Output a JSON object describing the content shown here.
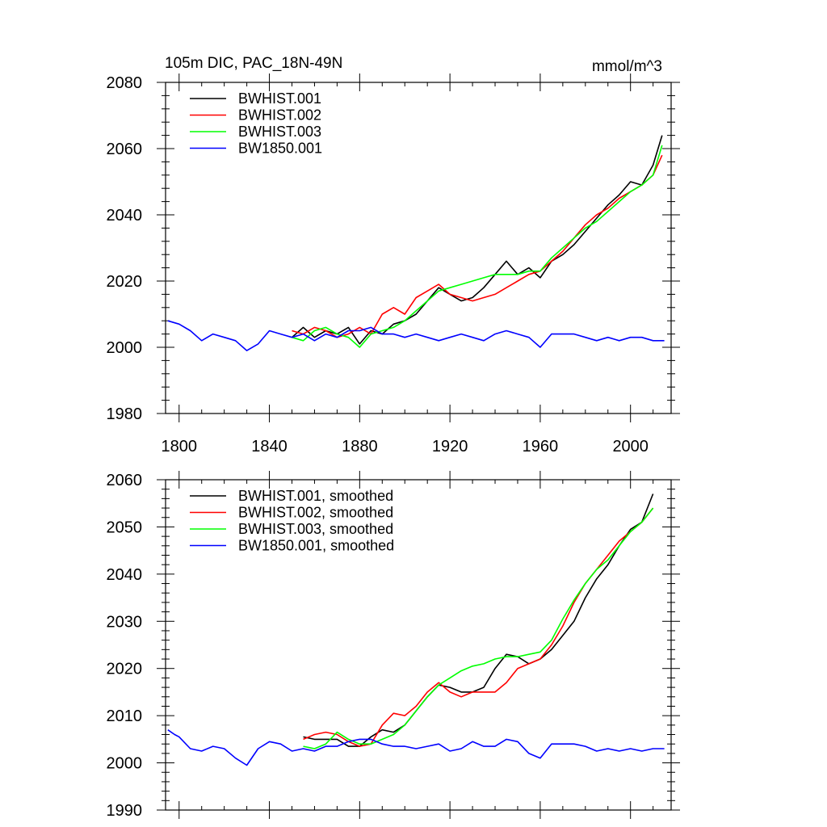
{
  "chart_data": [
    {
      "type": "line",
      "title": "105m DIC, PAC_18N-49N",
      "units": "mmol/m^3",
      "xlabel": "",
      "ylabel": "",
      "xlim": [
        1794,
        2018
      ],
      "ylim": [
        1980,
        2080
      ],
      "xticks": [
        1800,
        1840,
        1880,
        1920,
        1960,
        2000
      ],
      "xtick_labels": [
        "1800",
        "1840",
        "1880",
        "1920",
        "1960",
        "2000"
      ],
      "yticks": [
        1980,
        2000,
        2020,
        2040,
        2060,
        2080
      ],
      "ytick_labels": [
        "1980",
        "2000",
        "2020",
        "2040",
        "2060",
        "2080"
      ],
      "legend_position": "top-left",
      "grid": false,
      "series": [
        {
          "name": "BWHIST.001",
          "color": "#000000",
          "x": [
            1850,
            1855,
            1860,
            1865,
            1870,
            1875,
            1880,
            1885,
            1890,
            1895,
            1900,
            1905,
            1910,
            1915,
            1920,
            1925,
            1930,
            1935,
            1940,
            1945,
            1950,
            1955,
            1960,
            1965,
            1970,
            1975,
            1980,
            1985,
            1990,
            1995,
            2000,
            2005,
            2010,
            2014
          ],
          "y": [
            2003,
            2006,
            2003,
            2005,
            2004,
            2006,
            2001,
            2005,
            2004,
            2007,
            2008,
            2010,
            2014,
            2018,
            2016,
            2014,
            2015,
            2018,
            2022,
            2026,
            2022,
            2024,
            2021,
            2026,
            2028,
            2031,
            2035,
            2039,
            2043,
            2046,
            2050,
            2049,
            2055,
            2064
          ]
        },
        {
          "name": "BWHIST.002",
          "color": "#ff0000",
          "x": [
            1850,
            1855,
            1860,
            1865,
            1870,
            1875,
            1880,
            1885,
            1890,
            1895,
            1900,
            1905,
            1910,
            1915,
            1920,
            1925,
            1930,
            1935,
            1940,
            1945,
            1950,
            1955,
            1960,
            1965,
            1970,
            1975,
            1980,
            1985,
            1990,
            1995,
            2000,
            2005,
            2010,
            2014
          ],
          "y": [
            2005,
            2004,
            2006,
            2005,
            2003,
            2004,
            2006,
            2004,
            2010,
            2012,
            2010,
            2015,
            2017,
            2019,
            2016,
            2015,
            2014,
            2015,
            2016,
            2018,
            2020,
            2022,
            2023,
            2026,
            2029,
            2033,
            2037,
            2040,
            2042,
            2045,
            2047,
            2049,
            2052,
            2058
          ]
        },
        {
          "name": "BWHIST.003",
          "color": "#00ff00",
          "x": [
            1850,
            1855,
            1860,
            1865,
            1870,
            1875,
            1880,
            1885,
            1890,
            1895,
            1900,
            1905,
            1910,
            1915,
            1920,
            1925,
            1930,
            1935,
            1940,
            1945,
            1950,
            1955,
            1960,
            1965,
            1970,
            1975,
            1980,
            1985,
            1990,
            1995,
            2000,
            2005,
            2010,
            2014
          ],
          "y": [
            2003,
            2002,
            2005,
            2006,
            2004,
            2003,
            2000,
            2004,
            2005,
            2006,
            2008,
            2011,
            2014,
            2017,
            2018,
            2019,
            2020,
            2021,
            2022,
            2022,
            2022,
            2023,
            2023,
            2027,
            2030,
            2033,
            2036,
            2038,
            2041,
            2044,
            2047,
            2049,
            2052,
            2061
          ]
        },
        {
          "name": "BW1850.001",
          "color": "#0000ff",
          "x": [
            1795,
            1800,
            1805,
            1810,
            1815,
            1820,
            1825,
            1830,
            1835,
            1840,
            1845,
            1850,
            1855,
            1860,
            1865,
            1870,
            1875,
            1880,
            1885,
            1890,
            1895,
            1900,
            1905,
            1910,
            1915,
            1920,
            1925,
            1930,
            1935,
            1940,
            1945,
            1950,
            1955,
            1960,
            1965,
            1970,
            1975,
            1980,
            1985,
            1990,
            1995,
            2000,
            2005,
            2010,
            2015
          ],
          "y": [
            2008,
            2007,
            2005,
            2002,
            2004,
            2003,
            2002,
            1999,
            2001,
            2005,
            2004,
            2003,
            2004,
            2002,
            2004,
            2003,
            2005,
            2005,
            2006,
            2004,
            2004,
            2003,
            2004,
            2003,
            2002,
            2003,
            2004,
            2003,
            2002,
            2004,
            2005,
            2004,
            2003,
            2000,
            2004,
            2004,
            2004,
            2003,
            2002,
            2003,
            2002,
            2003,
            2003,
            2002,
            2002
          ]
        }
      ]
    },
    {
      "type": "line",
      "title": "",
      "xlabel": "",
      "ylabel": "",
      "xlim": [
        1794,
        2018
      ],
      "ylim": [
        1990,
        2060
      ],
      "xticks": [
        1800,
        1840,
        1880,
        1920,
        1960,
        2000
      ],
      "yticks": [
        1990,
        2000,
        2010,
        2020,
        2030,
        2040,
        2050,
        2060
      ],
      "ytick_labels": [
        "1990",
        "2000",
        "2010",
        "2020",
        "2030",
        "2040",
        "2050",
        "2060"
      ],
      "legend_position": "top-left",
      "grid": false,
      "series": [
        {
          "name": "BWHIST.001, smoothed",
          "color": "#000000",
          "x": [
            1855,
            1860,
            1865,
            1870,
            1875,
            1880,
            1885,
            1890,
            1895,
            1900,
            1905,
            1910,
            1915,
            1920,
            1925,
            1930,
            1935,
            1940,
            1945,
            1950,
            1955,
            1960,
            1965,
            1970,
            1975,
            1980,
            1985,
            1990,
            1995,
            2000,
            2005,
            2010
          ],
          "y": [
            2005.5,
            2005,
            2005,
            2005,
            2003.5,
            2003.5,
            2005.5,
            2007,
            2006.5,
            2008,
            2011,
            2014,
            2016.5,
            2016,
            2015,
            2015,
            2016,
            2020,
            2023,
            2022.5,
            2021,
            2022,
            2024,
            2027,
            2030,
            2035,
            2039,
            2042,
            2046,
            2049.5,
            2051,
            2057
          ]
        },
        {
          "name": "BWHIST.002, smoothed",
          "color": "#ff0000",
          "x": [
            1855,
            1860,
            1865,
            1870,
            1875,
            1880,
            1885,
            1890,
            1895,
            1900,
            1905,
            1910,
            1915,
            1920,
            1925,
            1930,
            1935,
            1940,
            1945,
            1950,
            1955,
            1960,
            1965,
            1970,
            1975,
            1980,
            1985,
            1990,
            1995,
            2000,
            2005,
            2010
          ],
          "y": [
            2005,
            2006,
            2006.5,
            2006,
            2004.5,
            2003.5,
            2004,
            2008,
            2010.5,
            2010,
            2012,
            2015,
            2017,
            2015,
            2014,
            2015,
            2015,
            2015,
            2017,
            2020,
            2021,
            2022,
            2025,
            2029,
            2034,
            2038,
            2041,
            2044,
            2047,
            2049,
            2051,
            2054
          ]
        },
        {
          "name": "BWHIST.003, smoothed",
          "color": "#00ff00",
          "x": [
            1855,
            1860,
            1865,
            1870,
            1875,
            1880,
            1885,
            1890,
            1895,
            1900,
            1905,
            1910,
            1915,
            1920,
            1925,
            1930,
            1935,
            1940,
            1945,
            1950,
            1955,
            1960,
            1965,
            1970,
            1975,
            1980,
            1985,
            1990,
            1995,
            2000,
            2005,
            2010
          ],
          "y": [
            2003.5,
            2003,
            2004,
            2006.5,
            2005,
            2004,
            2004,
            2005,
            2006,
            2008,
            2011,
            2014,
            2016.5,
            2018,
            2019.5,
            2020.5,
            2021,
            2022,
            2022.5,
            2022.5,
            2023,
            2023.5,
            2026,
            2030.5,
            2034.5,
            2038,
            2041,
            2043,
            2046,
            2049,
            2051,
            2054
          ]
        },
        {
          "name": "BW1850.001, smoothed",
          "color": "#0000ff",
          "x": [
            1795,
            1798,
            1800,
            1805,
            1810,
            1815,
            1820,
            1825,
            1830,
            1835,
            1840,
            1845,
            1850,
            1855,
            1860,
            1865,
            1870,
            1875,
            1880,
            1885,
            1890,
            1895,
            1900,
            1905,
            1910,
            1915,
            1920,
            1925,
            1930,
            1935,
            1940,
            1945,
            1950,
            1955,
            1960,
            1965,
            1970,
            1975,
            1980,
            1985,
            1990,
            1995,
            2000,
            2005,
            2010,
            2015
          ],
          "y": [
            2007,
            2006,
            2005.5,
            2003,
            2002.5,
            2003.5,
            2003,
            2001,
            1999.5,
            2003,
            2004.5,
            2004,
            2002.5,
            2003,
            2002.5,
            2003.5,
            2003.5,
            2004.5,
            2005,
            2005,
            2004,
            2003.5,
            2003.5,
            2003,
            2003.5,
            2004,
            2002.5,
            2003,
            2004.5,
            2003.5,
            2003.5,
            2005,
            2004.5,
            2002,
            2001,
            2004,
            2004,
            2004,
            2003.5,
            2002.5,
            2003,
            2002.5,
            2003,
            2002.5,
            2003,
            2003
          ]
        }
      ]
    }
  ]
}
